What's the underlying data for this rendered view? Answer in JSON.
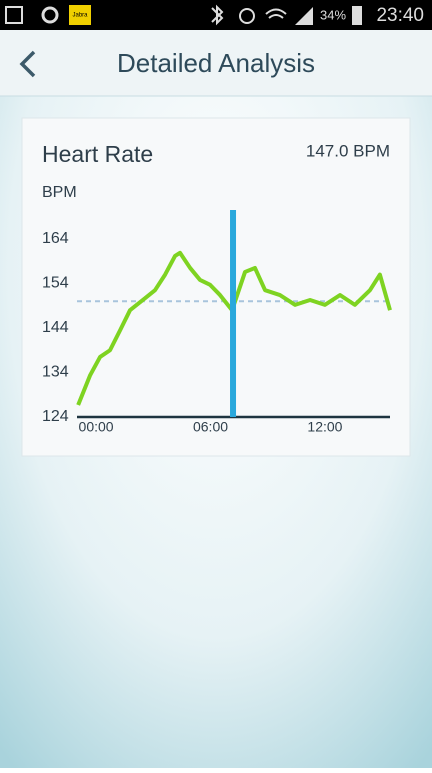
{
  "status_bar": {
    "app_icon": "Jabra",
    "battery": "34%",
    "time": "23:40"
  },
  "header": {
    "title": "Detailed Analysis"
  },
  "chart_data": {
    "type": "line",
    "title": "Heart Rate",
    "readout": "147.0 BPM",
    "y_label": "BPM",
    "x": [
      -0.94,
      -0.31,
      0.21,
      0.73,
      1.26,
      1.78,
      2.57,
      3.09,
      3.62,
      4.14,
      4.4,
      4.93,
      5.45,
      5.98,
      6.5,
      7.13,
      7.81,
      8.33,
      8.86,
      9.64,
      10.43,
      11.22,
      12,
      12.79,
      13.57,
      14.36,
      14.88,
      15.41
    ],
    "series": [
      {
        "color": "#7ed321",
        "values": [
          126.7,
          133.4,
          137.5,
          139,
          143.5,
          148,
          150.7,
          152.5,
          156,
          160.2,
          160.9,
          157.5,
          154.8,
          153.7,
          151.4,
          148,
          156.6,
          157.5,
          152.5,
          151.4,
          149.2,
          150.3,
          149.2,
          151.4,
          149.2,
          152.5,
          156,
          148
        ]
      }
    ],
    "average": 150,
    "average_color": "#a8c4dc",
    "cursor_x": 7.18,
    "cursor_color": "#2aa8dc",
    "xlim": [
      -1,
      15.41
    ],
    "ylim": [
      124,
      164
    ],
    "xticks": [
      {
        "value": 0,
        "label": "00:00"
      },
      {
        "value": 6,
        "label": "06:00"
      },
      {
        "value": 12,
        "label": "12:00"
      }
    ],
    "yticks": [
      124,
      134,
      144,
      154,
      164
    ]
  }
}
